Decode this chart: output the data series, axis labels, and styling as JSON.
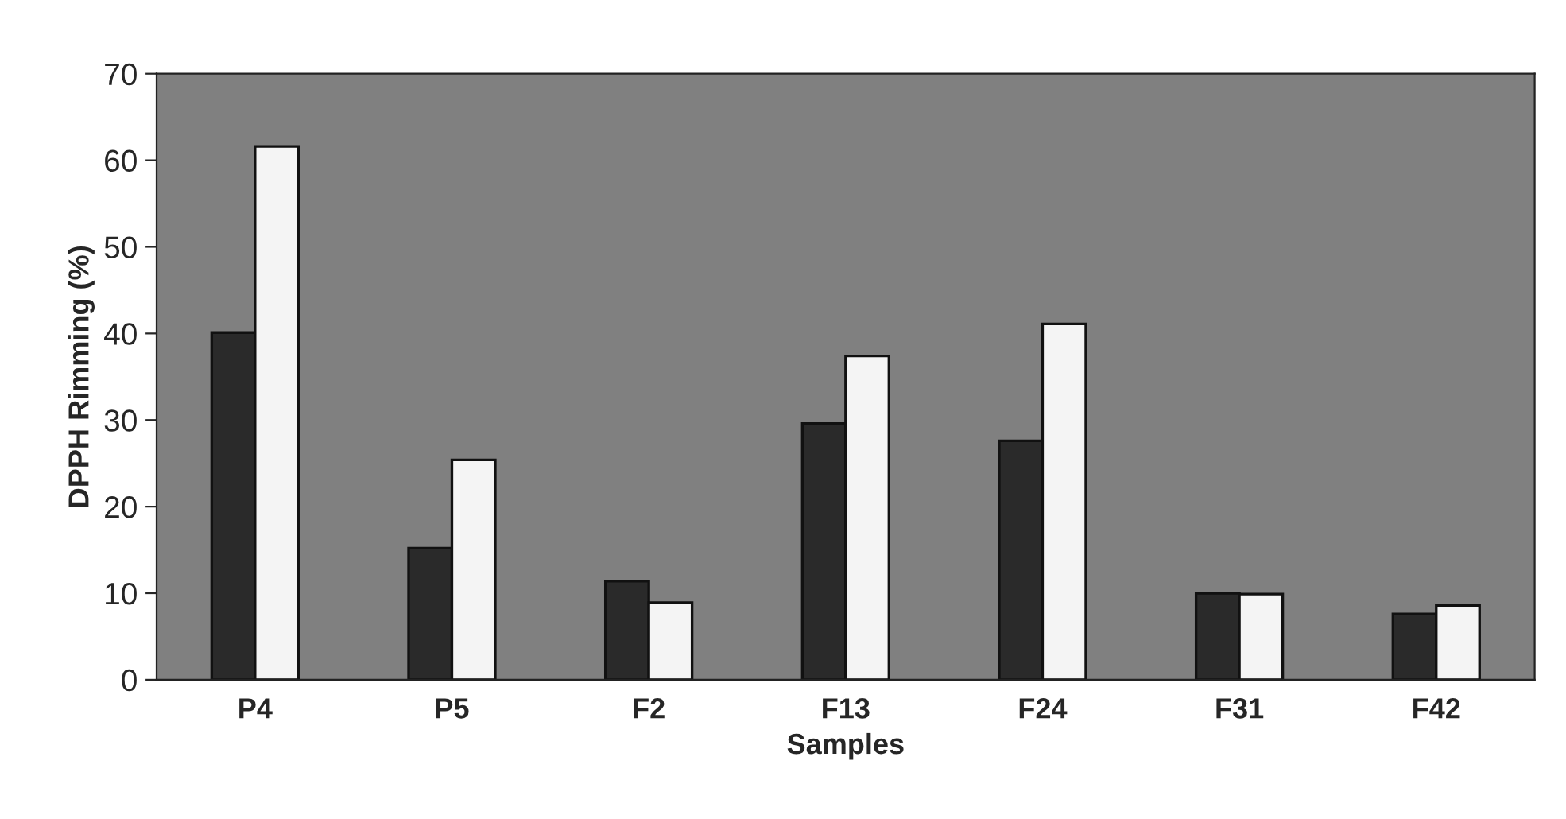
{
  "chart_data": {
    "type": "bar",
    "xlabel": "Samples",
    "ylabel": "DPPH Rimming (%)",
    "categories": [
      "P4",
      "P5",
      "F2",
      "F13",
      "F24",
      "F31",
      "F42"
    ],
    "series": [
      {
        "color": "#2a2a2a",
        "values": [
          40.1,
          15.2,
          11.4,
          29.6,
          27.6,
          10.0,
          7.6
        ]
      },
      {
        "color": "#f4f4f4",
        "values": [
          61.6,
          25.4,
          8.9,
          37.4,
          41.1,
          9.9,
          8.6
        ]
      }
    ],
    "ylim": [
      0,
      70
    ],
    "yticks": [
      0,
      10,
      20,
      30,
      40,
      50,
      60,
      70
    ],
    "grid": false,
    "legend": false
  }
}
